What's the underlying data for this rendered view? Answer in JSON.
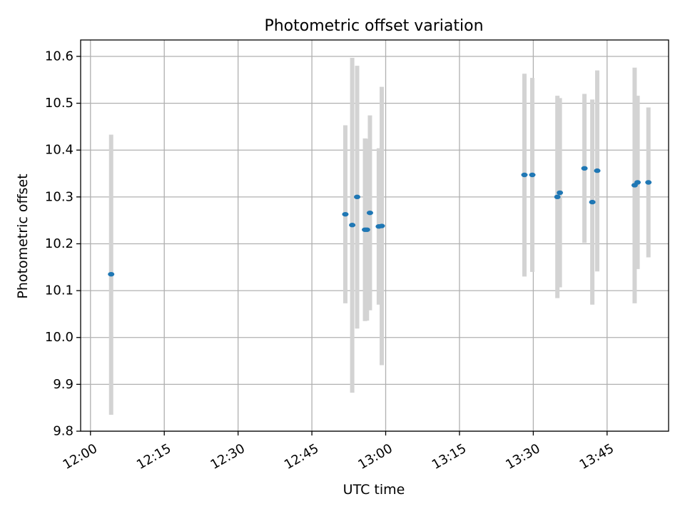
{
  "chart_data": {
    "type": "scatter",
    "title": "Photometric offset variation",
    "xlabel": "UTC time",
    "ylabel": "Photometric offset",
    "grid": true,
    "x_unit": "minutes after 12:00 UTC",
    "xlim": [
      -2,
      117.5
    ],
    "ylim": [
      9.8,
      10.635
    ],
    "x_ticks": [
      {
        "value": 0,
        "label": "12:00"
      },
      {
        "value": 15,
        "label": "12:15"
      },
      {
        "value": 30,
        "label": "12:30"
      },
      {
        "value": 45,
        "label": "12:45"
      },
      {
        "value": 60,
        "label": "13:00"
      },
      {
        "value": 75,
        "label": "13:15"
      },
      {
        "value": 90,
        "label": "13:30"
      },
      {
        "value": 105,
        "label": "13:45"
      }
    ],
    "y_ticks": [
      {
        "value": 9.8,
        "label": "9.8"
      },
      {
        "value": 9.9,
        "label": "9.9"
      },
      {
        "value": 10.0,
        "label": "10.0"
      },
      {
        "value": 10.1,
        "label": "10.1"
      },
      {
        "value": 10.2,
        "label": "10.2"
      },
      {
        "value": 10.3,
        "label": "10.3"
      },
      {
        "value": 10.4,
        "label": "10.4"
      },
      {
        "value": 10.5,
        "label": "10.5"
      },
      {
        "value": 10.6,
        "label": "10.6"
      }
    ],
    "colors": {
      "point": "#1f77b4",
      "errorbar": "#d3d3d3",
      "grid": "#b0b0b0"
    },
    "series": [
      {
        "name": "offset",
        "points": [
          {
            "x": 4.2,
            "y": 10.135,
            "ylow": 9.835,
            "yhigh": 10.433
          },
          {
            "x": 51.8,
            "y": 10.263,
            "ylow": 10.073,
            "yhigh": 10.453
          },
          {
            "x": 53.2,
            "y": 10.24,
            "ylow": 9.882,
            "yhigh": 10.597
          },
          {
            "x": 54.2,
            "y": 10.3,
            "ylow": 10.019,
            "yhigh": 10.58
          },
          {
            "x": 55.8,
            "y": 10.23,
            "ylow": 10.035,
            "yhigh": 10.425
          },
          {
            "x": 56.2,
            "y": 10.23,
            "ylow": 10.036,
            "yhigh": 10.424
          },
          {
            "x": 56.8,
            "y": 10.266,
            "ylow": 10.058,
            "yhigh": 10.474
          },
          {
            "x": 58.6,
            "y": 10.237,
            "ylow": 10.07,
            "yhigh": 10.404
          },
          {
            "x": 59.2,
            "y": 10.238,
            "ylow": 9.941,
            "yhigh": 10.535
          },
          {
            "x": 88.2,
            "y": 10.347,
            "ylow": 10.13,
            "yhigh": 10.563
          },
          {
            "x": 89.8,
            "y": 10.347,
            "ylow": 10.14,
            "yhigh": 10.554
          },
          {
            "x": 94.9,
            "y": 10.3,
            "ylow": 10.084,
            "yhigh": 10.516
          },
          {
            "x": 95.4,
            "y": 10.309,
            "ylow": 10.107,
            "yhigh": 10.511
          },
          {
            "x": 100.4,
            "y": 10.361,
            "ylow": 10.202,
            "yhigh": 10.52
          },
          {
            "x": 102.0,
            "y": 10.289,
            "ylow": 10.07,
            "yhigh": 10.508
          },
          {
            "x": 103.0,
            "y": 10.356,
            "ylow": 10.141,
            "yhigh": 10.57
          },
          {
            "x": 110.6,
            "y": 10.325,
            "ylow": 10.073,
            "yhigh": 10.576
          },
          {
            "x": 111.2,
            "y": 10.331,
            "ylow": 10.146,
            "yhigh": 10.516
          },
          {
            "x": 113.4,
            "y": 10.331,
            "ylow": 10.171,
            "yhigh": 10.491
          }
        ]
      }
    ]
  }
}
